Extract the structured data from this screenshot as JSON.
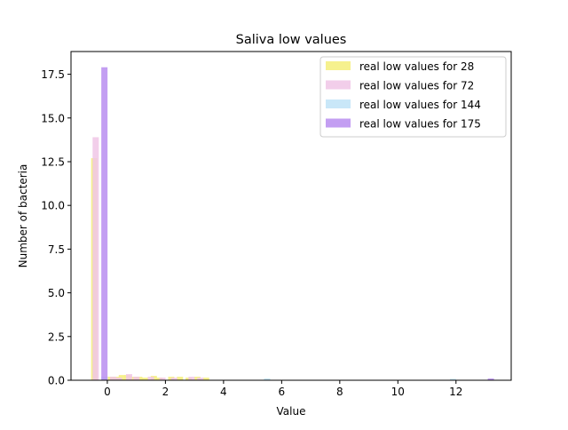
{
  "chart_data": {
    "type": "bar",
    "title": "Saliva low values",
    "xlabel": "Value",
    "ylabel": "Number of bacteria",
    "xlim": [
      -1.25,
      13.9
    ],
    "ylim": [
      0,
      18.8
    ],
    "xticks": [
      0,
      2,
      4,
      6,
      8,
      10,
      12
    ],
    "xtick_labels": [
      "0",
      "2",
      "4",
      "6",
      "8",
      "10",
      "12"
    ],
    "yticks": [
      0.0,
      2.5,
      5.0,
      7.5,
      10.0,
      12.5,
      15.0,
      17.5
    ],
    "ytick_labels": [
      "0.0",
      "2.5",
      "5.0",
      "7.5",
      "10.0",
      "12.5",
      "15.0",
      "17.5"
    ],
    "grid": false,
    "legend_position": "top-right",
    "series": [
      {
        "name": "real low values for 28",
        "color": "#f5ef7a",
        "bars": [
          [
            -0.45,
            12.7
          ],
          [
            0.12,
            0.2
          ],
          [
            0.3,
            0.2
          ],
          [
            0.5,
            0.3
          ],
          [
            0.7,
            0.3
          ],
          [
            0.9,
            0.2
          ],
          [
            1.1,
            0.2
          ],
          [
            1.3,
            0.15
          ],
          [
            1.6,
            0.25
          ],
          [
            1.8,
            0.15
          ],
          [
            2.2,
            0.2
          ],
          [
            2.5,
            0.2
          ],
          [
            2.8,
            0.15
          ],
          [
            3.1,
            0.2
          ],
          [
            3.4,
            0.15
          ]
        ]
      },
      {
        "name": "real low values for 72",
        "color": "#f0c6e6",
        "bars": [
          [
            -0.4,
            13.9
          ],
          [
            0.2,
            0.2
          ],
          [
            0.4,
            0.15
          ],
          [
            0.75,
            0.35
          ],
          [
            1.0,
            0.2
          ],
          [
            1.5,
            0.2
          ],
          [
            1.9,
            0.15
          ],
          [
            2.3,
            0.15
          ],
          [
            2.9,
            0.2
          ],
          [
            3.2,
            0.15
          ]
        ]
      },
      {
        "name": "real low values for 144",
        "color": "#bfe3f7",
        "bars": [
          [
            -0.1,
            0.2
          ],
          [
            5.5,
            0.1
          ],
          [
            11.9,
            0.08
          ]
        ]
      },
      {
        "name": "real low values for 175",
        "color": "#b88df0",
        "bars": [
          [
            -0.1,
            17.9
          ],
          [
            13.2,
            0.1
          ]
        ]
      }
    ]
  }
}
